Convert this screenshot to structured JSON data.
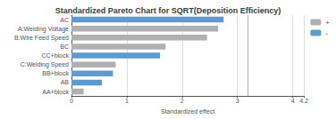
{
  "chart_data": {
    "type": "bar",
    "orientation": "horizontal",
    "title": "Standardized Pareto Chart for SQRT(Deposition Efficiency)",
    "xlabel": "Standardized effect",
    "categories": [
      "AC",
      "A:Welding Voltage",
      "B:Wire Feed Speed",
      "BC",
      "CC+block",
      "C:Welding Speed",
      "BB+block",
      "AB",
      "AA+block"
    ],
    "series": [
      {
        "name": "+",
        "color": "#b0b0b0",
        "values": [
          null,
          2.65,
          2.45,
          1.7,
          null,
          0.8,
          null,
          null,
          0.22
        ]
      },
      {
        "name": "-",
        "color": "#5b9bd5",
        "values": [
          2.75,
          null,
          null,
          null,
          1.6,
          null,
          0.75,
          0.55,
          null
        ]
      }
    ],
    "reference_line": 3.18,
    "xlim": [
      0,
      4.2
    ],
    "xticks": [
      0,
      1,
      2,
      3,
      4
    ],
    "grid": true,
    "legend": "right"
  }
}
